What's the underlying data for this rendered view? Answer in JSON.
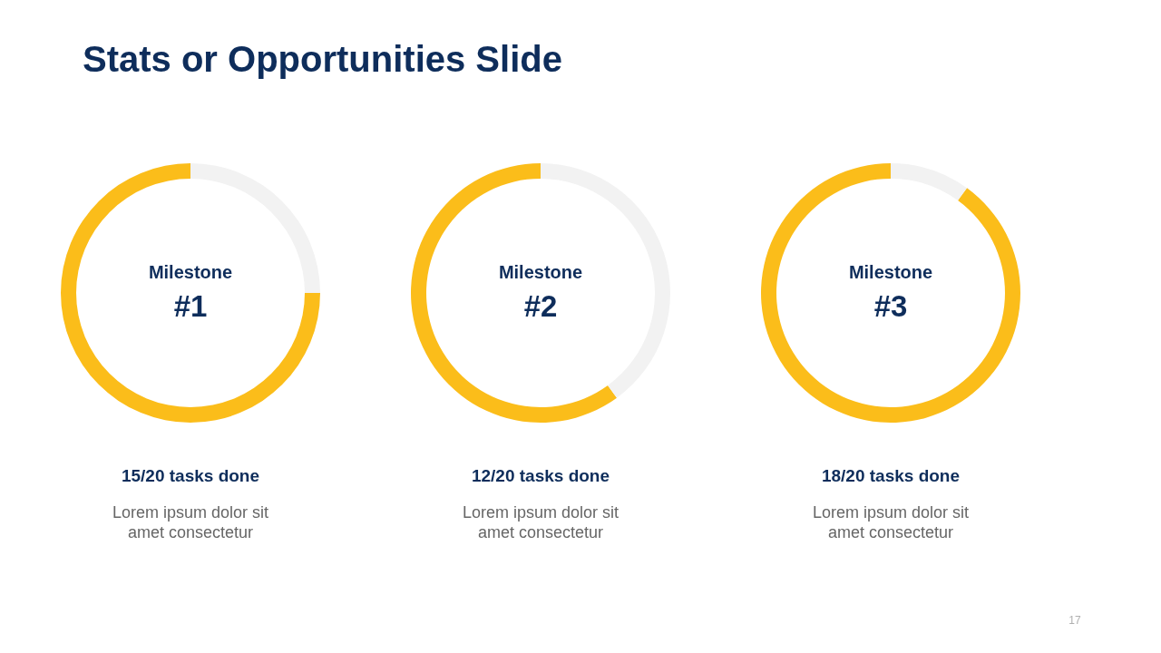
{
  "chart_data": [
    {
      "type": "other",
      "title": "Stats or Opportunities Slide",
      "annotations": [
        "17"
      ]
    },
    {
      "type": "donut",
      "title": "Milestone",
      "subtitle": "#1",
      "categories": [
        null,
        null
      ],
      "values": [
        75,
        25
      ],
      "colors": [
        "#fbbd1a",
        "#f2f2f2"
      ],
      "annotations": [
        "15/20 tasks done",
        "Lorem ipsum dolor sit\namet consectetur"
      ]
    },
    {
      "type": "donut",
      "title": "Milestone",
      "subtitle": "#2",
      "categories": [
        null,
        null
      ],
      "values": [
        60,
        40
      ],
      "colors": [
        "#fbbd1a",
        "#f2f2f2"
      ],
      "annotations": [
        "12/20 tasks done",
        "Lorem ipsum dolor sit\namet consectetur"
      ]
    },
    {
      "type": "donut",
      "title": "Milestone",
      "subtitle": "#3",
      "categories": [
        null,
        null
      ],
      "values": [
        90,
        10
      ],
      "colors": [
        "#fbbd1a",
        "#f2f2f2"
      ],
      "annotations": [
        "18/20 tasks done",
        "Lorem ipsum dolor sit\namet consectetur"
      ]
    }
  ]
}
